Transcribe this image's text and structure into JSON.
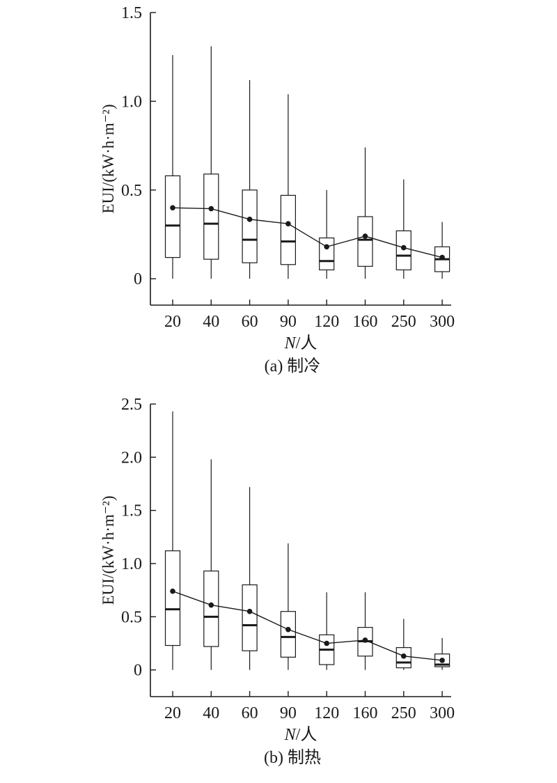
{
  "chart_data": [
    {
      "type": "box",
      "caption": "(a) 制冷",
      "ylabel": "EUI/(kW·h·m⁻²)",
      "xlabel_var": "N",
      "xlabel_unit": "/人",
      "categories": [
        "20",
        "40",
        "60",
        "90",
        "120",
        "160",
        "250",
        "300"
      ],
      "ylim": [
        -0.07,
        1.5
      ],
      "yticks": [
        0,
        0.5,
        1.0,
        1.5
      ],
      "ytick_labels": [
        "0",
        "0.5",
        "1.0",
        "1.5"
      ],
      "boxes": [
        {
          "min": 0.0,
          "q1": 0.12,
          "median": 0.3,
          "q3": 0.58,
          "max": 1.26,
          "mean": 0.4
        },
        {
          "min": 0.0,
          "q1": 0.11,
          "median": 0.31,
          "q3": 0.59,
          "max": 1.31,
          "mean": 0.395
        },
        {
          "min": 0.0,
          "q1": 0.09,
          "median": 0.22,
          "q3": 0.5,
          "max": 1.12,
          "mean": 0.335
        },
        {
          "min": 0.0,
          "q1": 0.08,
          "median": 0.21,
          "q3": 0.47,
          "max": 1.04,
          "mean": 0.31
        },
        {
          "min": 0.0,
          "q1": 0.05,
          "median": 0.1,
          "q3": 0.23,
          "max": 0.5,
          "mean": 0.18
        },
        {
          "min": 0.0,
          "q1": 0.07,
          "median": 0.22,
          "q3": 0.35,
          "max": 0.74,
          "mean": 0.24
        },
        {
          "min": 0.0,
          "q1": 0.05,
          "median": 0.13,
          "q3": 0.27,
          "max": 0.56,
          "mean": 0.175
        },
        {
          "min": 0.0,
          "q1": 0.04,
          "median": 0.11,
          "q3": 0.18,
          "max": 0.32,
          "mean": 0.12
        }
      ]
    },
    {
      "type": "box",
      "caption": "(b) 制热",
      "ylabel": "EUI/(kW·h·m⁻²)",
      "xlabel_var": "N",
      "xlabel_unit": "/人",
      "categories": [
        "20",
        "40",
        "60",
        "90",
        "120",
        "160",
        "250",
        "300"
      ],
      "ylim": [
        -0.12,
        2.5
      ],
      "yticks": [
        0,
        0.5,
        1.0,
        1.5,
        2.0,
        2.5
      ],
      "ytick_labels": [
        "0",
        "0.5",
        "1.0",
        "1.5",
        "2.0",
        "2.5"
      ],
      "boxes": [
        {
          "min": 0.0,
          "q1": 0.23,
          "median": 0.57,
          "q3": 1.12,
          "max": 2.43,
          "mean": 0.74
        },
        {
          "min": 0.0,
          "q1": 0.22,
          "median": 0.5,
          "q3": 0.93,
          "max": 1.98,
          "mean": 0.61
        },
        {
          "min": 0.0,
          "q1": 0.18,
          "median": 0.42,
          "q3": 0.8,
          "max": 1.72,
          "mean": 0.55
        },
        {
          "min": 0.0,
          "q1": 0.12,
          "median": 0.31,
          "q3": 0.55,
          "max": 1.19,
          "mean": 0.38
        },
        {
          "min": 0.0,
          "q1": 0.05,
          "median": 0.19,
          "q3": 0.33,
          "max": 0.73,
          "mean": 0.25
        },
        {
          "min": 0.0,
          "q1": 0.13,
          "median": 0.27,
          "q3": 0.4,
          "max": 0.73,
          "mean": 0.28
        },
        {
          "min": 0.0,
          "q1": 0.02,
          "median": 0.07,
          "q3": 0.21,
          "max": 0.48,
          "mean": 0.13
        },
        {
          "min": 0.0,
          "q1": 0.03,
          "median": 0.05,
          "q3": 0.15,
          "max": 0.3,
          "mean": 0.09
        }
      ]
    }
  ]
}
